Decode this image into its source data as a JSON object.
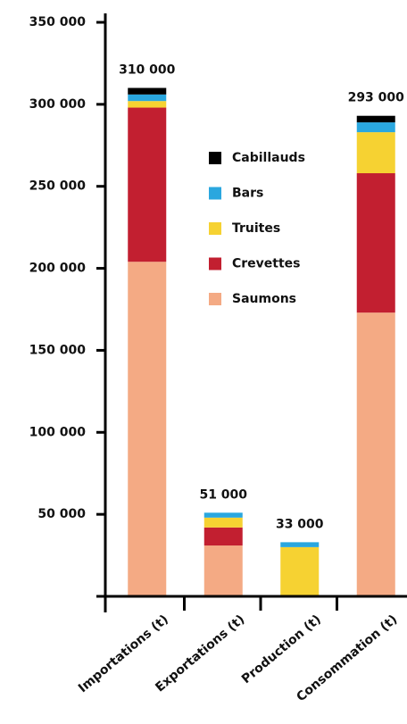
{
  "chart_data": {
    "type": "stacked_bar",
    "categories": [
      "Importations (t)",
      "Exportations (t)",
      "Production (t)",
      "Consommation (t)"
    ],
    "series": [
      {
        "name": "Saumons",
        "color": "#f4aa84",
        "values": [
          204000,
          31000,
          0,
          173000
        ]
      },
      {
        "name": "Crevettes",
        "color": "#c21f30",
        "values": [
          94000,
          11000,
          0,
          85000
        ]
      },
      {
        "name": "Truites",
        "color": "#f6d232",
        "values": [
          4000,
          6000,
          30000,
          25000
        ]
      },
      {
        "name": "Bars",
        "color": "#2aa7df",
        "values": [
          4000,
          3000,
          3000,
          6000
        ]
      },
      {
        "name": "Cabillauds",
        "color": "#000000",
        "values": [
          4000,
          0,
          0,
          4000
        ]
      }
    ],
    "totals": [
      310000,
      51000,
      33000,
      293000
    ],
    "total_labels": [
      "310 000",
      "51 000",
      "33 000",
      "293 000"
    ],
    "ylim": [
      0,
      350000
    ],
    "yticks": [
      {
        "value": 50000,
        "label": "50 000"
      },
      {
        "value": 100000,
        "label": "100 000"
      },
      {
        "value": 150000,
        "label": "150 000"
      },
      {
        "value": 200000,
        "label": "200 000"
      },
      {
        "value": 250000,
        "label": "250 000"
      },
      {
        "value": 300000,
        "label": "300 000"
      },
      {
        "value": 350000,
        "label": "350 000"
      }
    ],
    "legend": "upper right"
  }
}
